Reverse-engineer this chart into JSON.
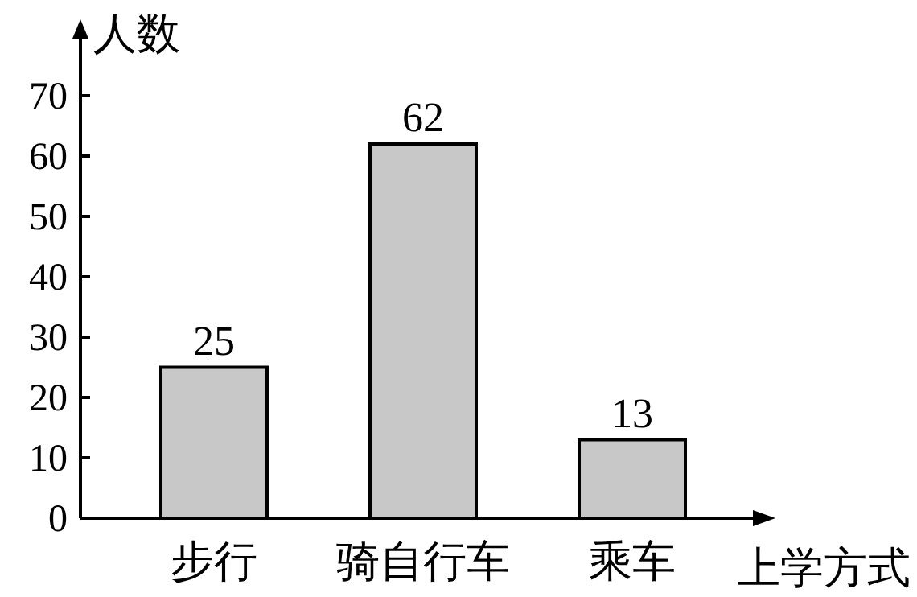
{
  "chart_data": {
    "type": "bar",
    "xlabel": "上学方式",
    "ylabel": "人数",
    "categories": [
      "步行",
      "骑自行车",
      "乘车"
    ],
    "values": [
      25,
      62,
      13
    ],
    "color": "#c8c8c8",
    "data_labels": true,
    "ylim": [
      0,
      80
    ],
    "yticks": [
      0,
      10,
      20,
      30,
      40,
      50,
      60,
      70
    ],
    "grid": false
  }
}
